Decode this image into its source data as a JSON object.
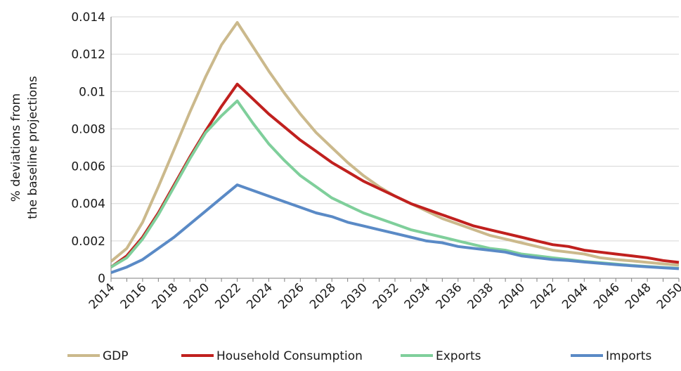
{
  "chart_data": {
    "type": "line",
    "title": "",
    "xlabel": "",
    "ylabel": [
      "% deviations from",
      "the baseline projections"
    ],
    "x": [
      2014,
      2015,
      2016,
      2017,
      2018,
      2019,
      2020,
      2021,
      2022,
      2023,
      2024,
      2025,
      2026,
      2027,
      2028,
      2029,
      2030,
      2031,
      2032,
      2033,
      2034,
      2035,
      2036,
      2037,
      2038,
      2039,
      2040,
      2041,
      2042,
      2043,
      2044,
      2045,
      2046,
      2047,
      2048,
      2049,
      2050
    ],
    "xticks": [
      "2014",
      "2016",
      "2018",
      "2020",
      "2022",
      "2024",
      "2026",
      "2028",
      "2030",
      "2032",
      "2034",
      "2036",
      "2038",
      "2040",
      "2042",
      "2044",
      "2046",
      "2048",
      "2050"
    ],
    "xlim": [
      2014,
      2050
    ],
    "ylim": [
      0,
      0.014
    ],
    "yticks": [
      {
        "value": 0,
        "label": "0"
      },
      {
        "value": 0.002,
        "label": "0.002"
      },
      {
        "value": 0.004,
        "label": "0.004"
      },
      {
        "value": 0.006,
        "label": "0.006"
      },
      {
        "value": 0.008,
        "label": "0.008"
      },
      {
        "value": 0.01,
        "label": "0.01"
      },
      {
        "value": 0.012,
        "label": "0.012"
      },
      {
        "value": 0.014,
        "label": "0.014"
      }
    ],
    "grid": "horizontal",
    "legend_position": "bottom",
    "series": [
      {
        "name": "GDP",
        "color": "#cbb98c",
        "values": [
          0.0009,
          0.0016,
          0.003,
          0.0049,
          0.0069,
          0.0089,
          0.0108,
          0.0125,
          0.0137,
          0.0124,
          0.0111,
          0.0099,
          0.0088,
          0.0078,
          0.007,
          0.0062,
          0.0055,
          0.0049,
          0.0044,
          0.004,
          0.0036,
          0.0032,
          0.0029,
          0.0026,
          0.0023,
          0.0021,
          0.0019,
          0.0017,
          0.0015,
          0.0014,
          0.0013,
          0.0011,
          0.001,
          0.00093,
          0.00085,
          0.00077,
          0.0007
        ]
      },
      {
        "name": "Household Consumption",
        "color": "#c0201e",
        "values": [
          0.0006,
          0.0012,
          0.0022,
          0.0035,
          0.005,
          0.0065,
          0.0079,
          0.0092,
          0.0104,
          0.0096,
          0.0088,
          0.0081,
          0.0074,
          0.0068,
          0.0062,
          0.0057,
          0.0052,
          0.0048,
          0.0044,
          0.004,
          0.0037,
          0.0034,
          0.0031,
          0.0028,
          0.0026,
          0.0024,
          0.0022,
          0.002,
          0.0018,
          0.0017,
          0.0015,
          0.0014,
          0.0013,
          0.0012,
          0.0011,
          0.00095,
          0.00085
        ]
      },
      {
        "name": "Exports",
        "color": "#7fcf9b",
        "values": [
          0.0006,
          0.0011,
          0.0021,
          0.0034,
          0.0049,
          0.0064,
          0.0078,
          0.0087,
          0.0095,
          0.0083,
          0.0072,
          0.0063,
          0.0055,
          0.0049,
          0.0043,
          0.0039,
          0.0035,
          0.0032,
          0.0029,
          0.0026,
          0.0024,
          0.0022,
          0.002,
          0.0018,
          0.0016,
          0.0015,
          0.0013,
          0.0012,
          0.0011,
          0.001,
          0.0009,
          0.00083,
          0.00076,
          0.00069,
          0.00063,
          0.00058,
          0.00053
        ]
      },
      {
        "name": "Imports",
        "color": "#5a8ac6",
        "values": [
          0.0003,
          0.0006,
          0.001,
          0.0016,
          0.0022,
          0.0029,
          0.0036,
          0.0043,
          0.005,
          0.0047,
          0.0044,
          0.0041,
          0.0038,
          0.0035,
          0.0033,
          0.003,
          0.0028,
          0.0026,
          0.0024,
          0.0022,
          0.002,
          0.0019,
          0.0017,
          0.0016,
          0.0015,
          0.0014,
          0.0012,
          0.0011,
          0.001,
          0.00095,
          0.00087,
          0.0008,
          0.00073,
          0.00067,
          0.00061,
          0.00056,
          0.00051
        ]
      }
    ]
  }
}
